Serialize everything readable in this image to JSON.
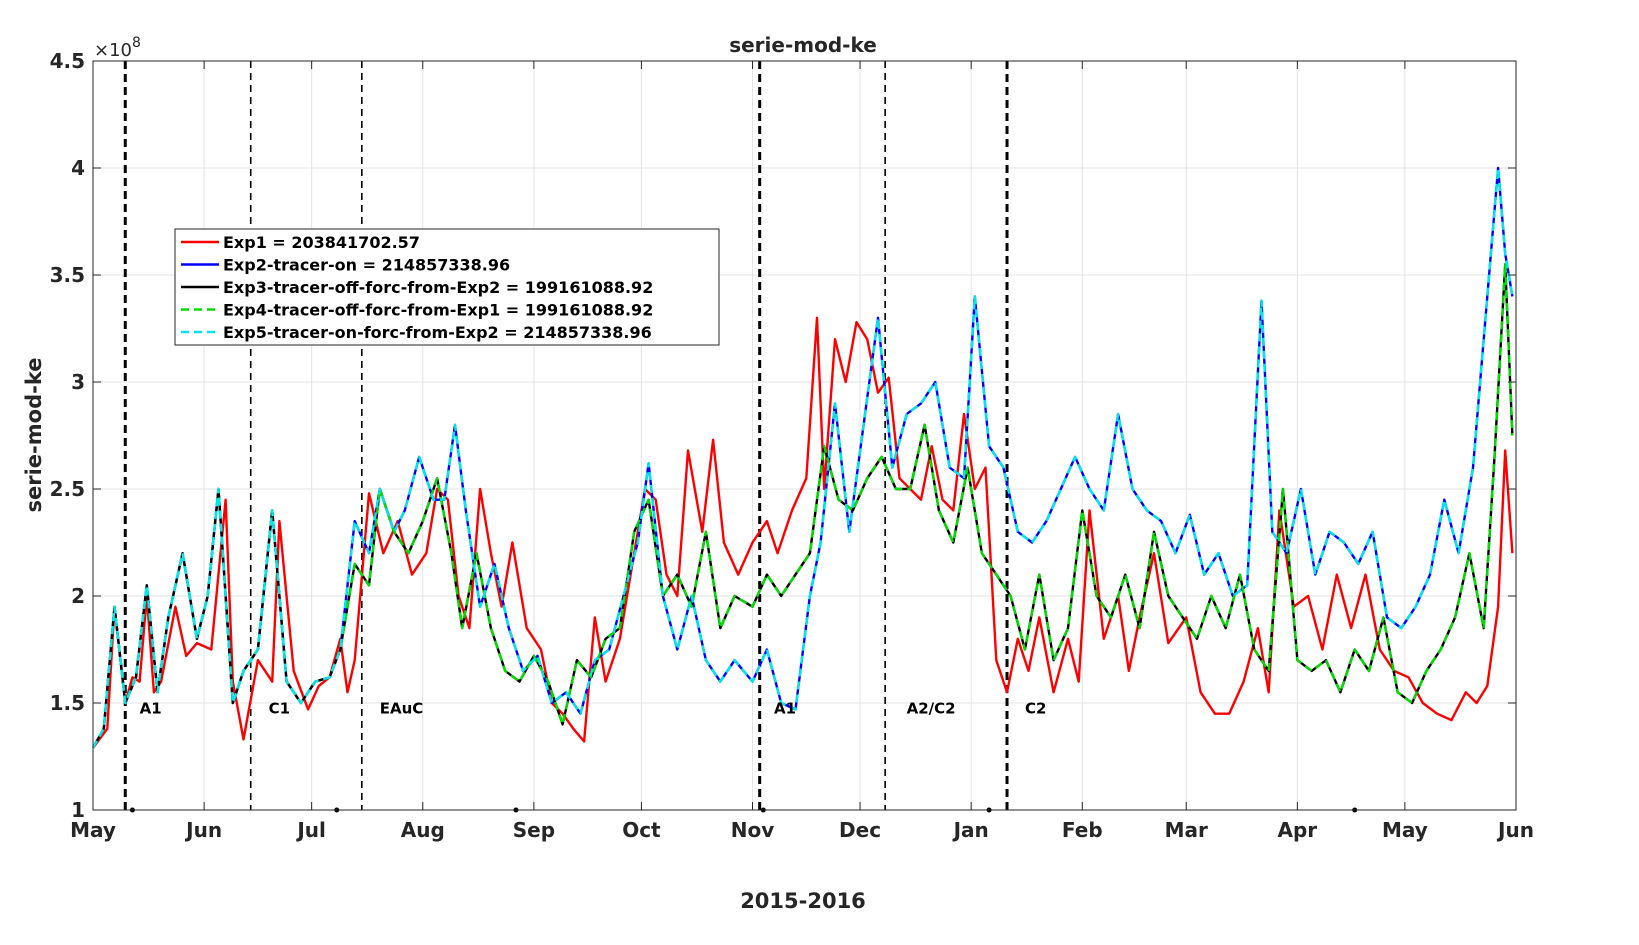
{
  "chart_data": {
    "type": "line",
    "title": "serie-mod-ke",
    "xlabel": "2015-2016",
    "ylabel": "serie-mod-ke",
    "y_multiplier_label": "×10",
    "y_multiplier_exponent": "8",
    "ylim": [
      1.0,
      4.5
    ],
    "xlim": [
      "2015-05-01",
      "2016-06-01"
    ],
    "grid": true,
    "legend_position": "upper-left",
    "yticks": [
      {
        "value": 1.0,
        "label": "1"
      },
      {
        "value": 1.5,
        "label": "1.5"
      },
      {
        "value": 2.0,
        "label": "2"
      },
      {
        "value": 2.5,
        "label": "2.5"
      },
      {
        "value": 3.0,
        "label": "3"
      },
      {
        "value": 3.5,
        "label": "3.5"
      },
      {
        "value": 4.0,
        "label": "4"
      },
      {
        "value": 4.5,
        "label": "4.5"
      }
    ],
    "xticks": [
      {
        "date": "2015-05-01",
        "label": "May"
      },
      {
        "date": "2015-06-01",
        "label": "Jun"
      },
      {
        "date": "2015-07-01",
        "label": "Jul"
      },
      {
        "date": "2015-08-01",
        "label": "Aug"
      },
      {
        "date": "2015-09-01",
        "label": "Sep"
      },
      {
        "date": "2015-10-01",
        "label": "Oct"
      },
      {
        "date": "2015-11-01",
        "label": "Nov"
      },
      {
        "date": "2015-12-01",
        "label": "Dec"
      },
      {
        "date": "2016-01-01",
        "label": "Jan"
      },
      {
        "date": "2016-02-01",
        "label": "Feb"
      },
      {
        "date": "2016-03-01",
        "label": "Mar"
      },
      {
        "date": "2016-04-01",
        "label": "Apr"
      },
      {
        "date": "2016-05-01",
        "label": "May"
      },
      {
        "date": "2016-06-01",
        "label": "Jun"
      }
    ],
    "vlines": [
      {
        "date": "2015-05-10",
        "style": "thick"
      },
      {
        "date": "2015-06-14",
        "style": "thin"
      },
      {
        "date": "2015-07-15",
        "style": "thin"
      },
      {
        "date": "2015-11-03",
        "style": "thick"
      },
      {
        "date": "2015-12-08",
        "style": "thin"
      },
      {
        "date": "2016-01-11",
        "style": "thick"
      }
    ],
    "annotations": [
      {
        "date": "2015-05-14",
        "y": 1.48,
        "text": "A1"
      },
      {
        "date": "2015-06-19",
        "y": 1.48,
        "text": "C1"
      },
      {
        "date": "2015-07-20",
        "y": 1.48,
        "text": "EAuC"
      },
      {
        "date": "2015-11-07",
        "y": 1.48,
        "text": "A1"
      },
      {
        "date": "2015-12-14",
        "y": 1.48,
        "text": "A2/C2"
      },
      {
        "date": "2016-01-16",
        "y": 1.48,
        "text": "C2"
      }
    ],
    "baseline_dots": [
      "2015-05-12",
      "2015-07-08",
      "2015-08-27",
      "2015-11-04",
      "2016-01-06",
      "2016-04-17"
    ],
    "series": [
      {
        "name": "Exp1 = 203841702.57",
        "color": "#ff0000",
        "dashed": false,
        "x": [
          "2015-05-01",
          "2015-05-05",
          "2015-05-07",
          "2015-05-10",
          "2015-05-12",
          "2015-05-14",
          "2015-05-16",
          "2015-05-18",
          "2015-05-20",
          "2015-05-24",
          "2015-05-27",
          "2015-05-30",
          "2015-06-03",
          "2015-06-07",
          "2015-06-09",
          "2015-06-12",
          "2015-06-16",
          "2015-06-20",
          "2015-06-22",
          "2015-06-26",
          "2015-06-30",
          "2015-07-03",
          "2015-07-06",
          "2015-07-09",
          "2015-07-11",
          "2015-07-13",
          "2015-07-17",
          "2015-07-21",
          "2015-07-25",
          "2015-07-29",
          "2015-08-02",
          "2015-08-05",
          "2015-08-08",
          "2015-08-11",
          "2015-08-14",
          "2015-08-17",
          "2015-08-20",
          "2015-08-23",
          "2015-08-26",
          "2015-08-30",
          "2015-09-03",
          "2015-09-06",
          "2015-09-09",
          "2015-09-12",
          "2015-09-15",
          "2015-09-18",
          "2015-09-21",
          "2015-09-25",
          "2015-09-29",
          "2015-10-02",
          "2015-10-05",
          "2015-10-08",
          "2015-10-11",
          "2015-10-14",
          "2015-10-18",
          "2015-10-21",
          "2015-10-24",
          "2015-10-28",
          "2015-11-01",
          "2015-11-05",
          "2015-11-08",
          "2015-11-12",
          "2015-11-16",
          "2015-11-19",
          "2015-11-21",
          "2015-11-24",
          "2015-11-27",
          "2015-11-30",
          "2015-12-03",
          "2015-12-06",
          "2015-12-09",
          "2015-12-12",
          "2015-12-15",
          "2015-12-18",
          "2015-12-21",
          "2015-12-24",
          "2015-12-27",
          "2015-12-30",
          "2016-01-02",
          "2016-01-05",
          "2016-01-08",
          "2016-01-11",
          "2016-01-14",
          "2016-01-17",
          "2016-01-20",
          "2016-01-24",
          "2016-01-28",
          "2016-01-31",
          "2016-02-03",
          "2016-02-07",
          "2016-02-11",
          "2016-02-14",
          "2016-02-17",
          "2016-02-21",
          "2016-02-25",
          "2016-03-01",
          "2016-03-05",
          "2016-03-09",
          "2016-03-13",
          "2016-03-17",
          "2016-03-21",
          "2016-03-24",
          "2016-03-27",
          "2016-03-31",
          "2016-04-04",
          "2016-04-08",
          "2016-04-12",
          "2016-04-16",
          "2016-04-20",
          "2016-04-24",
          "2016-04-28",
          "2016-05-02",
          "2016-05-06",
          "2016-05-10",
          "2016-05-14",
          "2016-05-18",
          "2016-05-21",
          "2016-05-24",
          "2016-05-27",
          "2016-05-29",
          "2016-05-31"
        ],
        "y": [
          1.29,
          1.38,
          1.95,
          1.5,
          1.62,
          1.6,
          2.0,
          1.55,
          1.6,
          1.95,
          1.72,
          1.78,
          1.75,
          2.45,
          1.6,
          1.33,
          1.7,
          1.6,
          2.35,
          1.65,
          1.47,
          1.58,
          1.62,
          1.8,
          1.55,
          1.7,
          2.48,
          2.2,
          2.35,
          2.1,
          2.2,
          2.5,
          2.45,
          2.0,
          1.85,
          2.5,
          2.2,
          1.95,
          2.25,
          1.85,
          1.75,
          1.5,
          1.45,
          1.38,
          1.32,
          1.9,
          1.6,
          1.8,
          2.2,
          2.5,
          2.45,
          2.1,
          2.0,
          2.68,
          2.3,
          2.73,
          2.25,
          2.1,
          2.25,
          2.35,
          2.2,
          2.4,
          2.55,
          3.3,
          2.5,
          3.2,
          3.0,
          3.28,
          3.2,
          2.95,
          3.02,
          2.55,
          2.5,
          2.45,
          2.7,
          2.45,
          2.4,
          2.85,
          2.5,
          2.6,
          1.7,
          1.55,
          1.8,
          1.65,
          1.9,
          1.55,
          1.8,
          1.6,
          2.4,
          1.8,
          2.0,
          1.65,
          1.9,
          2.2,
          1.78,
          1.9,
          1.55,
          1.45,
          1.45,
          1.6,
          1.85,
          1.55,
          2.4,
          1.95,
          2.0,
          1.75,
          2.1,
          1.85,
          2.1,
          1.75,
          1.65,
          1.62,
          1.5,
          1.45,
          1.42,
          1.55,
          1.5,
          1.58,
          1.95,
          2.68,
          2.2
        ]
      },
      {
        "name": "Exp2-tracer-on = 214857338.96",
        "color": "#0000ff",
        "dashed": false,
        "x": [
          "2015-05-01",
          "2015-05-04",
          "2015-05-07",
          "2015-05-10",
          "2015-05-13",
          "2015-05-16",
          "2015-05-19",
          "2015-05-22",
          "2015-05-26",
          "2015-05-30",
          "2015-06-02",
          "2015-06-05",
          "2015-06-09",
          "2015-06-12",
          "2015-06-16",
          "2015-06-20",
          "2015-06-24",
          "2015-06-28",
          "2015-07-02",
          "2015-07-06",
          "2015-07-09",
          "2015-07-13",
          "2015-07-17",
          "2015-07-20",
          "2015-07-24",
          "2015-07-27",
          "2015-07-31",
          "2015-08-04",
          "2015-08-07",
          "2015-08-10",
          "2015-08-13",
          "2015-08-17",
          "2015-08-21",
          "2015-08-25",
          "2015-08-29",
          "2015-09-02",
          "2015-09-06",
          "2015-09-10",
          "2015-09-14",
          "2015-09-18",
          "2015-09-22",
          "2015-09-26",
          "2015-09-30",
          "2015-10-03",
          "2015-10-07",
          "2015-10-11",
          "2015-10-15",
          "2015-10-19",
          "2015-10-23",
          "2015-10-27",
          "2015-11-01",
          "2015-11-05",
          "2015-11-09",
          "2015-11-13",
          "2015-11-17",
          "2015-11-20",
          "2015-11-24",
          "2015-11-28",
          "2015-12-02",
          "2015-12-06",
          "2015-12-10",
          "2015-12-14",
          "2015-12-18",
          "2015-12-22",
          "2015-12-26",
          "2015-12-30",
          "2016-01-02",
          "2016-01-06",
          "2016-01-10",
          "2016-01-14",
          "2016-01-18",
          "2016-01-22",
          "2016-01-26",
          "2016-01-30",
          "2016-02-03",
          "2016-02-07",
          "2016-02-11",
          "2016-02-15",
          "2016-02-19",
          "2016-02-23",
          "2016-02-27",
          "2016-03-02",
          "2016-03-06",
          "2016-03-10",
          "2016-03-14",
          "2016-03-18",
          "2016-03-22",
          "2016-03-25",
          "2016-03-29",
          "2016-04-02",
          "2016-04-06",
          "2016-04-10",
          "2016-04-14",
          "2016-04-18",
          "2016-04-22",
          "2016-04-26",
          "2016-04-30",
          "2016-05-04",
          "2016-05-08",
          "2016-05-12",
          "2016-05-16",
          "2016-05-20",
          "2016-05-24",
          "2016-05-27",
          "2016-05-29",
          "2016-05-31"
        ],
        "y": [
          1.29,
          1.38,
          1.95,
          1.5,
          1.62,
          2.05,
          1.55,
          1.9,
          2.2,
          1.8,
          2.0,
          2.5,
          1.5,
          1.65,
          1.75,
          2.4,
          1.6,
          1.5,
          1.6,
          1.62,
          1.75,
          2.35,
          2.2,
          2.5,
          2.3,
          2.4,
          2.65,
          2.45,
          2.45,
          2.8,
          2.4,
          1.95,
          2.15,
          1.85,
          1.65,
          1.72,
          1.5,
          1.55,
          1.45,
          1.7,
          1.75,
          2.0,
          2.25,
          2.62,
          2.0,
          1.75,
          2.0,
          1.7,
          1.6,
          1.7,
          1.6,
          1.75,
          1.5,
          1.47,
          2.0,
          2.25,
          2.9,
          2.3,
          2.8,
          3.3,
          2.6,
          2.85,
          2.9,
          3.0,
          2.6,
          2.55,
          3.4,
          2.7,
          2.6,
          2.3,
          2.25,
          2.35,
          2.5,
          2.65,
          2.5,
          2.4,
          2.85,
          2.5,
          2.4,
          2.35,
          2.2,
          2.38,
          2.1,
          2.2,
          2.0,
          2.05,
          3.38,
          2.3,
          2.2,
          2.5,
          2.1,
          2.3,
          2.25,
          2.15,
          2.3,
          1.9,
          1.85,
          1.95,
          2.1,
          2.45,
          2.2,
          2.6,
          3.4,
          4.0,
          3.6,
          3.4
        ]
      },
      {
        "name": "Exp3-tracer-off-forc-from-Exp2 = 199161088.92",
        "color": "#000000",
        "dashed": false,
        "x": [
          "2015-05-01",
          "2015-05-04",
          "2015-05-07",
          "2015-05-10",
          "2015-05-13",
          "2015-05-16",
          "2015-05-19",
          "2015-05-22",
          "2015-05-26",
          "2015-05-30",
          "2015-06-02",
          "2015-06-05",
          "2015-06-09",
          "2015-06-12",
          "2015-06-16",
          "2015-06-20",
          "2015-06-24",
          "2015-06-28",
          "2015-07-02",
          "2015-07-06",
          "2015-07-09",
          "2015-07-13",
          "2015-07-17",
          "2015-07-20",
          "2015-07-24",
          "2015-07-28",
          "2015-08-01",
          "2015-08-05",
          "2015-08-09",
          "2015-08-12",
          "2015-08-16",
          "2015-08-20",
          "2015-08-24",
          "2015-08-28",
          "2015-09-01",
          "2015-09-05",
          "2015-09-09",
          "2015-09-13",
          "2015-09-17",
          "2015-09-21",
          "2015-09-25",
          "2015-09-29",
          "2015-10-03",
          "2015-10-07",
          "2015-10-11",
          "2015-10-15",
          "2015-10-19",
          "2015-10-23",
          "2015-10-27",
          "2015-11-01",
          "2015-11-05",
          "2015-11-09",
          "2015-11-13",
          "2015-11-17",
          "2015-11-21",
          "2015-11-25",
          "2015-11-29",
          "2015-12-03",
          "2015-12-07",
          "2015-12-11",
          "2015-12-15",
          "2015-12-19",
          "2015-12-23",
          "2015-12-27",
          "2015-12-31",
          "2016-01-04",
          "2016-01-08",
          "2016-01-12",
          "2016-01-16",
          "2016-01-20",
          "2016-01-24",
          "2016-01-28",
          "2016-02-01",
          "2016-02-05",
          "2016-02-09",
          "2016-02-13",
          "2016-02-17",
          "2016-02-21",
          "2016-02-25",
          "2016-02-29",
          "2016-03-04",
          "2016-03-08",
          "2016-03-12",
          "2016-03-16",
          "2016-03-20",
          "2016-03-24",
          "2016-03-28",
          "2016-04-01",
          "2016-04-05",
          "2016-04-09",
          "2016-04-13",
          "2016-04-17",
          "2016-04-21",
          "2016-04-25",
          "2016-04-29",
          "2016-05-03",
          "2016-05-07",
          "2016-05-11",
          "2016-05-15",
          "2016-05-19",
          "2016-05-23",
          "2016-05-26",
          "2016-05-29",
          "2016-05-31"
        ],
        "y": [
          1.29,
          1.38,
          1.95,
          1.5,
          1.62,
          2.05,
          1.55,
          1.9,
          2.2,
          1.8,
          2.0,
          2.5,
          1.5,
          1.65,
          1.75,
          2.4,
          1.6,
          1.5,
          1.6,
          1.62,
          1.75,
          2.15,
          2.05,
          2.5,
          2.3,
          2.2,
          2.35,
          2.55,
          2.2,
          1.85,
          2.2,
          1.85,
          1.65,
          1.6,
          1.72,
          1.6,
          1.4,
          1.7,
          1.62,
          1.8,
          1.85,
          2.3,
          2.45,
          2.0,
          2.1,
          1.95,
          2.3,
          1.85,
          2.0,
          1.95,
          2.1,
          2.0,
          2.1,
          2.2,
          2.7,
          2.45,
          2.4,
          2.55,
          2.65,
          2.5,
          2.5,
          2.8,
          2.4,
          2.25,
          2.6,
          2.2,
          2.1,
          2.0,
          1.75,
          2.1,
          1.7,
          1.85,
          2.4,
          2.0,
          1.9,
          2.1,
          1.85,
          2.3,
          2.0,
          1.9,
          1.8,
          2.0,
          1.85,
          2.1,
          1.75,
          1.65,
          2.5,
          1.7,
          1.65,
          1.7,
          1.55,
          1.75,
          1.65,
          1.9,
          1.55,
          1.5,
          1.65,
          1.75,
          1.9,
          2.2,
          1.85,
          2.65,
          3.55,
          2.75
        ]
      },
      {
        "name": "Exp4-tracer-off-forc-from-Exp1 = 199161088.92",
        "color": "#00dd00",
        "dashed": true,
        "ref_series": 2
      },
      {
        "name": "Exp5-tracer-on-forc-from-Exp2 = 214857338.96",
        "color": "#00e5ee",
        "dashed": true,
        "ref_series": 1
      }
    ]
  }
}
